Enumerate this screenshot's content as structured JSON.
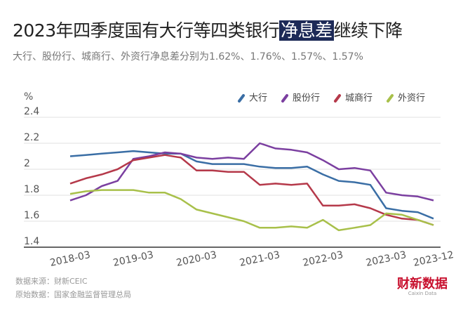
{
  "chart_data": {
    "type": "line",
    "title": [
      "2023年四季度国有大行等四类银行",
      "净息差",
      "继续下降"
    ],
    "subtitle": "大行、股份行、城商行、外资行净息差分别为1.62%、1.76%、1.57%、1.57%",
    "y_label": "%",
    "categories": [
      "2018-03",
      null,
      null,
      null,
      "2019-03",
      null,
      null,
      null,
      "2020-03",
      null,
      null,
      null,
      "2021-03",
      null,
      null,
      null,
      "2022-03",
      null,
      null,
      null,
      "2023-03",
      null,
      null,
      "2023-12"
    ],
    "series": [
      {
        "name": "大行",
        "color": "#3a6ea5",
        "values": [
          2.1,
          2.11,
          2.12,
          2.13,
          2.14,
          2.13,
          2.12,
          2.12,
          2.06,
          2.04,
          2.04,
          2.04,
          2.02,
          2.01,
          2.01,
          2.02,
          1.96,
          1.91,
          1.9,
          1.88,
          1.7,
          1.68,
          1.67,
          1.62
        ]
      },
      {
        "name": "股份行",
        "color": "#7b3fa0",
        "values": [
          1.76,
          1.8,
          1.87,
          1.91,
          2.08,
          2.1,
          2.13,
          2.12,
          2.09,
          2.08,
          2.09,
          2.08,
          2.2,
          2.16,
          2.15,
          2.13,
          2.07,
          2.0,
          2.01,
          1.99,
          1.82,
          1.8,
          1.79,
          1.76
        ]
      },
      {
        "name": "城商行",
        "color": "#b5394a",
        "values": [
          1.89,
          1.93,
          1.96,
          2.0,
          2.07,
          2.09,
          2.11,
          2.09,
          1.99,
          1.99,
          1.98,
          1.98,
          1.88,
          1.89,
          1.88,
          1.89,
          1.72,
          1.72,
          1.73,
          1.7,
          1.65,
          1.62,
          1.61,
          1.57
        ]
      },
      {
        "name": "外资行",
        "color": "#a8c04a",
        "values": [
          1.81,
          1.83,
          1.84,
          1.84,
          1.84,
          1.82,
          1.82,
          1.77,
          1.69,
          1.66,
          1.63,
          1.6,
          1.55,
          1.55,
          1.56,
          1.55,
          1.61,
          1.53,
          1.55,
          1.57,
          1.66,
          1.65,
          1.61,
          1.57
        ]
      }
    ],
    "ylim": [
      1.4,
      2.4
    ],
    "yticks": [
      1.4,
      1.6,
      1.8,
      2,
      2.2,
      2.4
    ],
    "grid": true,
    "legend": "top-right",
    "source": "数据来源：财新CEIC",
    "raw_source": "原始数据：国家金融监督管理总局",
    "logo": "财新数据",
    "logo_en": "Caixin Data"
  }
}
